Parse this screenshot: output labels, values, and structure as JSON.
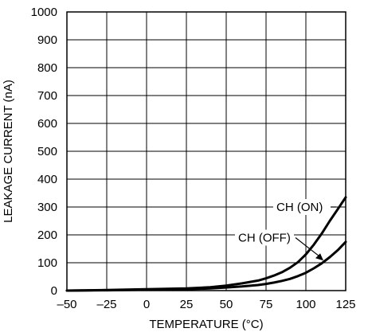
{
  "chart_data": {
    "type": "line",
    "title": "",
    "xlabel": "TEMPERATURE (°C)",
    "ylabel": "LEAKAGE CURRENT (nA)",
    "xlim": [
      -50,
      125
    ],
    "ylim": [
      0,
      1000
    ],
    "xticks": [
      -50,
      -25,
      0,
      25,
      50,
      75,
      100,
      125
    ],
    "yticks": [
      0,
      100,
      200,
      300,
      400,
      500,
      600,
      700,
      800,
      900,
      1000
    ],
    "xtick_labels": [
      "–50",
      "–25",
      "0",
      "25",
      "50",
      "75",
      "100",
      "125"
    ],
    "ytick_labels": [
      "0",
      "100",
      "200",
      "300",
      "400",
      "500",
      "600",
      "700",
      "800",
      "900",
      "1000"
    ],
    "grid": true,
    "legend": "none",
    "series": [
      {
        "name": "CH (ON)",
        "x": [
          -50,
          -25,
          0,
          25,
          40,
          50,
          60,
          70,
          75,
          80,
          85,
          90,
          95,
          100,
          105,
          110,
          115,
          120,
          125
        ],
        "y": [
          0,
          2,
          5,
          8,
          12,
          18,
          26,
          36,
          44,
          54,
          66,
          82,
          102,
          130,
          165,
          205,
          250,
          292,
          335
        ]
      },
      {
        "name": "CH (OFF)",
        "x": [
          -50,
          -25,
          0,
          25,
          40,
          50,
          60,
          70,
          75,
          80,
          85,
          90,
          95,
          100,
          105,
          110,
          115,
          120,
          125
        ],
        "y": [
          0,
          1,
          3,
          5,
          8,
          11,
          15,
          20,
          24,
          29,
          35,
          42,
          52,
          64,
          80,
          98,
          120,
          145,
          175
        ]
      }
    ],
    "annotations": [
      {
        "text": "CH (ON)",
        "series": "CH (ON)"
      },
      {
        "text": "CH (OFF)",
        "series": "CH (OFF)"
      }
    ]
  }
}
